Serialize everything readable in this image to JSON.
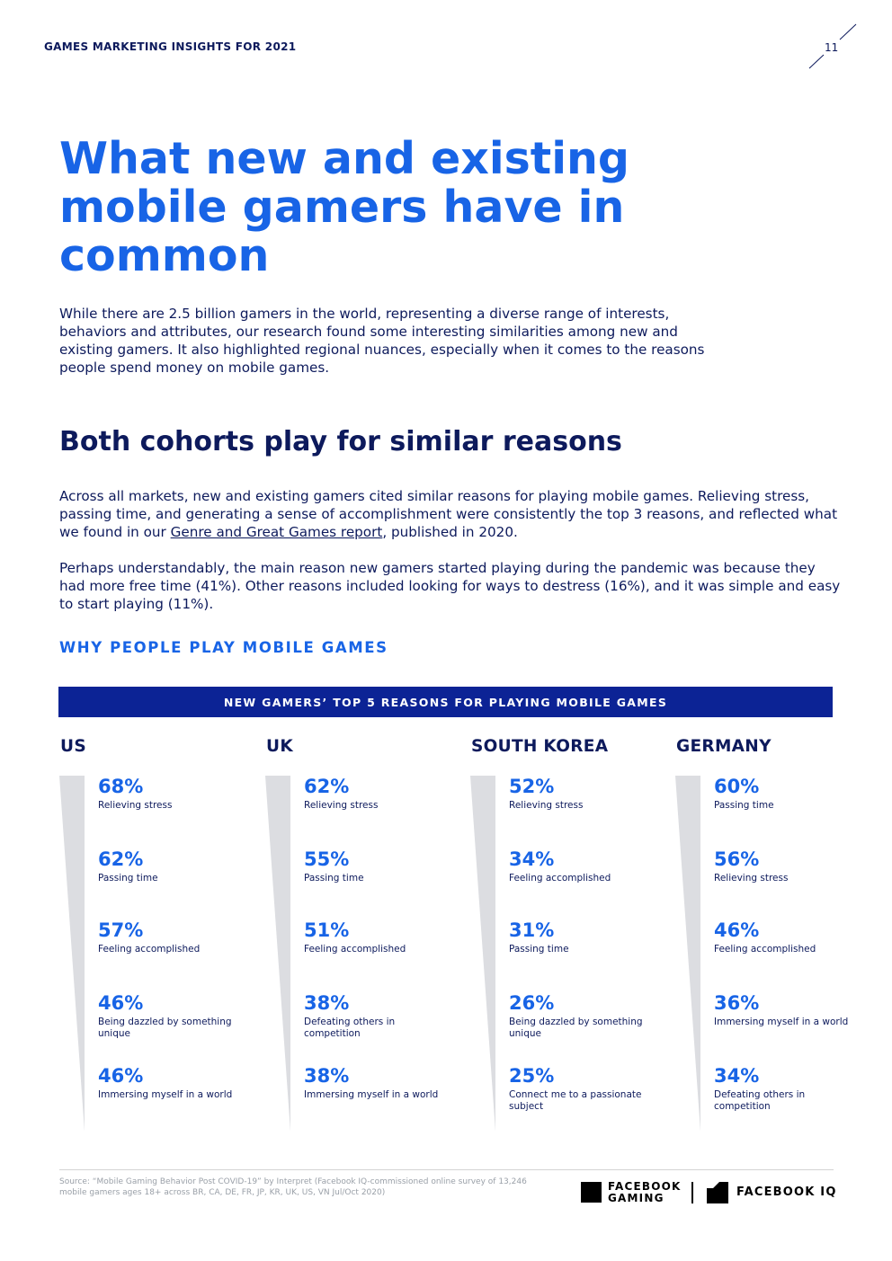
{
  "header": {
    "running_title": "GAMES MARKETING INSIGHTS FOR 2021",
    "page_number": "11"
  },
  "title": "What new and existing mobile gamers have in common",
  "intro": "While there are 2.5 billion gamers in the world, representing a diverse range of interests, behaviors and attributes, our research found some interesting similarities among new and existing gamers. It also highlighted regional nuances, especially when it comes to the reasons people spend money on mobile games.",
  "section_heading": "Both cohorts play for similar reasons",
  "paragraph1": {
    "before_link": "Across all markets, new and existing gamers cited similar reasons for playing mobile games. Relieving stress, passing time, and generating a sense of accomplishment were consistently the top 3 reasons, and reflected what we found in our ",
    "link_text": "Genre and Great Games report",
    "after_link": ", published in 2020."
  },
  "paragraph2": "Perhaps understandably, the main reason new gamers started playing during the pandemic was because they had more free time (41%). Other reasons included looking for ways to destress (16%), and it was simple and easy to start playing (11%).",
  "subheading": "WHY PEOPLE PLAY MOBILE GAMES",
  "banner": "NEW GAMERS’ TOP 5 REASONS FOR PLAYING MOBILE GAMES",
  "countries": [
    {
      "name": "US",
      "items": [
        {
          "pct": "68%",
          "label": "Relieving stress"
        },
        {
          "pct": "62%",
          "label": "Passing time"
        },
        {
          "pct": "57%",
          "label": "Feeling accomplished"
        },
        {
          "pct": "46%",
          "label": "Being dazzled by something unique"
        },
        {
          "pct": "46%",
          "label": "Immersing myself in a world"
        }
      ]
    },
    {
      "name": "UK",
      "items": [
        {
          "pct": "62%",
          "label": "Relieving stress"
        },
        {
          "pct": "55%",
          "label": "Passing time"
        },
        {
          "pct": "51%",
          "label": "Feeling accomplished"
        },
        {
          "pct": "38%",
          "label": "Defeating others in competition"
        },
        {
          "pct": "38%",
          "label": "Immersing myself in a world"
        }
      ]
    },
    {
      "name": "SOUTH KOREA",
      "items": [
        {
          "pct": "52%",
          "label": "Relieving stress"
        },
        {
          "pct": "34%",
          "label": "Feeling accomplished"
        },
        {
          "pct": "31%",
          "label": "Passing time"
        },
        {
          "pct": "26%",
          "label": "Being dazzled by something unique"
        },
        {
          "pct": "25%",
          "label": "Connect me to a passionate subject"
        }
      ]
    },
    {
      "name": "GERMANY",
      "items": [
        {
          "pct": "60%",
          "label": "Passing time"
        },
        {
          "pct": "56%",
          "label": "Relieving stress"
        },
        {
          "pct": "46%",
          "label": "Feeling accomplished"
        },
        {
          "pct": "36%",
          "label": "Immersing myself in a world"
        },
        {
          "pct": "34%",
          "label": "Defeating others in competition"
        }
      ]
    }
  ],
  "source": "Source: “Mobile Gaming Behavior Post COVID-19” by Interpret (Facebook IQ-commissioned online survey of 13,246 mobile gamers ages 18+ across BR, CA, DE, FR, JP, KR, UK, US, VN Jul/Oct 2020)",
  "logos": {
    "gaming_line1": "FACEBOOK",
    "gaming_line2": "GAMING",
    "iq": "FACEBOOK IQ"
  },
  "colors": {
    "accent_blue": "#1864e6",
    "navy": "#0d1a5c",
    "banner": "#0c2395",
    "wedge": "#dcdde1"
  }
}
